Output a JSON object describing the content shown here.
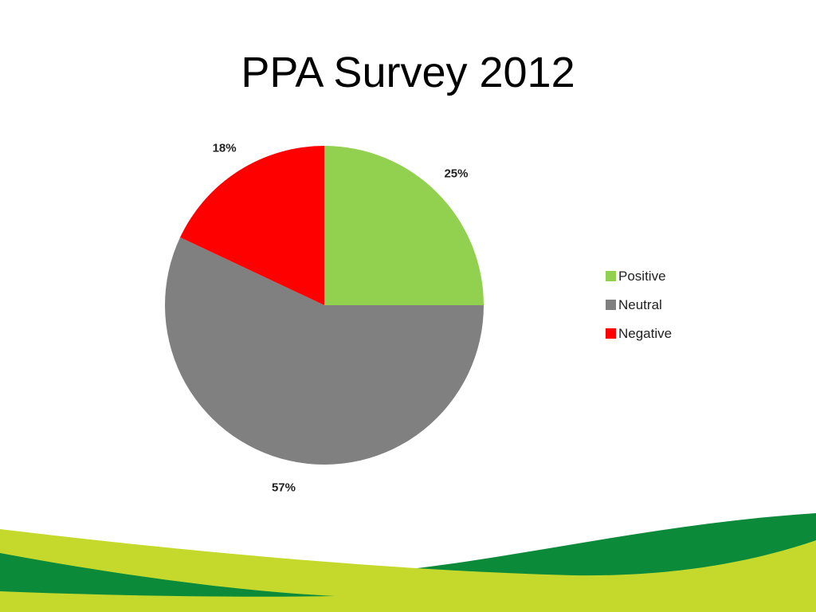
{
  "slide": {
    "title": "PPA Survey 2012"
  },
  "chart_data": {
    "type": "pie",
    "title": "",
    "start_angle_deg": 0,
    "direction": "clockwise",
    "legend_position": "right",
    "slices": [
      {
        "name": "Positive",
        "value": 25,
        "label": "25%",
        "color": "#92d050"
      },
      {
        "name": "Neutral",
        "value": 57,
        "label": "57%",
        "color": "#808080"
      },
      {
        "name": "Negative",
        "value": 18,
        "label": "18%",
        "color": "#ff0000"
      }
    ]
  },
  "footer": {
    "colors": {
      "dark_green": "#0b8a3a",
      "lime": "#c5d92d"
    }
  }
}
